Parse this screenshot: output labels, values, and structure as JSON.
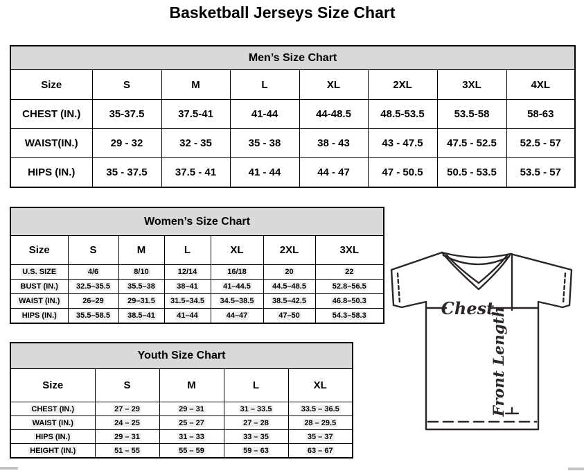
{
  "page_title": "Basketball Jerseys Size Chart",
  "tables": {
    "mens": {
      "title": "Men’s Size Chart",
      "columns": [
        "Size",
        "S",
        "M",
        "L",
        "XL",
        "2XL",
        "3XL",
        "4XL"
      ],
      "rows": [
        {
          "label": "CHEST (IN.)",
          "values": [
            "35-37.5",
            "37.5-41",
            "41-44",
            "44-48.5",
            "48.5-53.5",
            "53.5-58",
            "58-63"
          ]
        },
        {
          "label": "WAIST(IN.)",
          "values": [
            "29 - 32",
            "32 - 35",
            "35 - 38",
            "38 - 43",
            "43 - 47.5",
            "47.5 - 52.5",
            "52.5 - 57"
          ]
        },
        {
          "label": "HIPS (IN.)",
          "values": [
            "35 - 37.5",
            "37.5 - 41",
            "41 - 44",
            "44 - 47",
            "47 - 50.5",
            "50.5 - 53.5",
            "53.5 - 57"
          ]
        }
      ]
    },
    "womens": {
      "title": "Women’s Size Chart",
      "columns": [
        "Size",
        "S",
        "M",
        "L",
        "XL",
        "2XL",
        "3XL"
      ],
      "rows": [
        {
          "label": "U.S. SIZE",
          "values": [
            "4/6",
            "8/10",
            "12/14",
            "16/18",
            "20",
            "22"
          ]
        },
        {
          "label": "BUST (IN.)",
          "values": [
            "32.5–35.5",
            "35.5–38",
            "38–41",
            "41–44.5",
            "44.5–48.5",
            "52.8–56.5"
          ]
        },
        {
          "label": "WAIST (IN.)",
          "values": [
            "26–29",
            "29–31.5",
            "31.5–34.5",
            "34.5–38.5",
            "38.5–42.5",
            "46.8–50.3"
          ]
        },
        {
          "label": "HIPS (IN.)",
          "values": [
            "35.5–58.5",
            "38.5–41",
            "41–44",
            "44–47",
            "47–50",
            "54.3–58.3"
          ]
        }
      ]
    },
    "youth": {
      "title": "Youth Size Chart",
      "columns": [
        "Size",
        "S",
        "M",
        "L",
        "XL"
      ],
      "rows": [
        {
          "label": "CHEST (IN.)",
          "values": [
            "27 – 29",
            "29 – 31",
            "31 – 33.5",
            "33.5 – 36.5"
          ]
        },
        {
          "label": "WAIST (IN.)",
          "values": [
            "24 – 25",
            "25 – 27",
            "27 – 28",
            "28 – 29.5"
          ]
        },
        {
          "label": "HIPS (IN.)",
          "values": [
            "29 – 31",
            "31 – 33",
            "33 – 35",
            "35 – 37"
          ]
        },
        {
          "label": "HEIGHT (IN.)",
          "values": [
            "51 – 55",
            "55 – 59",
            "59 – 63",
            "63 – 67"
          ]
        }
      ]
    }
  },
  "diagram": {
    "chest_label": "Chest",
    "front_length_label": "Front Length"
  }
}
